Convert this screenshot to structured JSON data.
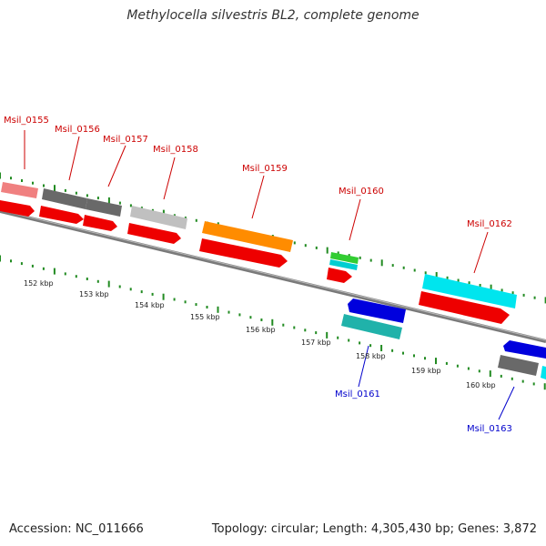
{
  "title": "Methylocella silvestris BL2, complete genome",
  "accession": "Accession: NC_011666",
  "summary": "Topology: circular; Length: 4,305,430 bp; Genes: 3,872",
  "colors": {
    "forward_label": "#cc0000",
    "reverse_label": "#0000cc",
    "tick": "#228b22",
    "backbone": "#808080"
  },
  "kbp_ticks": [
    {
      "label": "152 kbp"
    },
    {
      "label": "153 kbp"
    },
    {
      "label": "154 kbp"
    },
    {
      "label": "155 kbp"
    },
    {
      "label": "156 kbp"
    },
    {
      "label": "157 kbp"
    },
    {
      "label": "158 kbp"
    },
    {
      "label": "159 kbp"
    },
    {
      "label": "160 kbp"
    }
  ],
  "gene_labels": [
    {
      "text": "Msil_0155",
      "strand": "forward"
    },
    {
      "text": "Msil_0156",
      "strand": "forward"
    },
    {
      "text": "Msil_0157",
      "strand": "forward"
    },
    {
      "text": "Msil_0158",
      "strand": "forward"
    },
    {
      "text": "Msil_0159",
      "strand": "forward"
    },
    {
      "text": "Msil_0160",
      "strand": "forward"
    },
    {
      "text": "Msil_0162",
      "strand": "forward"
    },
    {
      "text": "Msil_0161",
      "strand": "reverse"
    },
    {
      "text": "Msil_0163",
      "strand": "reverse"
    }
  ]
}
